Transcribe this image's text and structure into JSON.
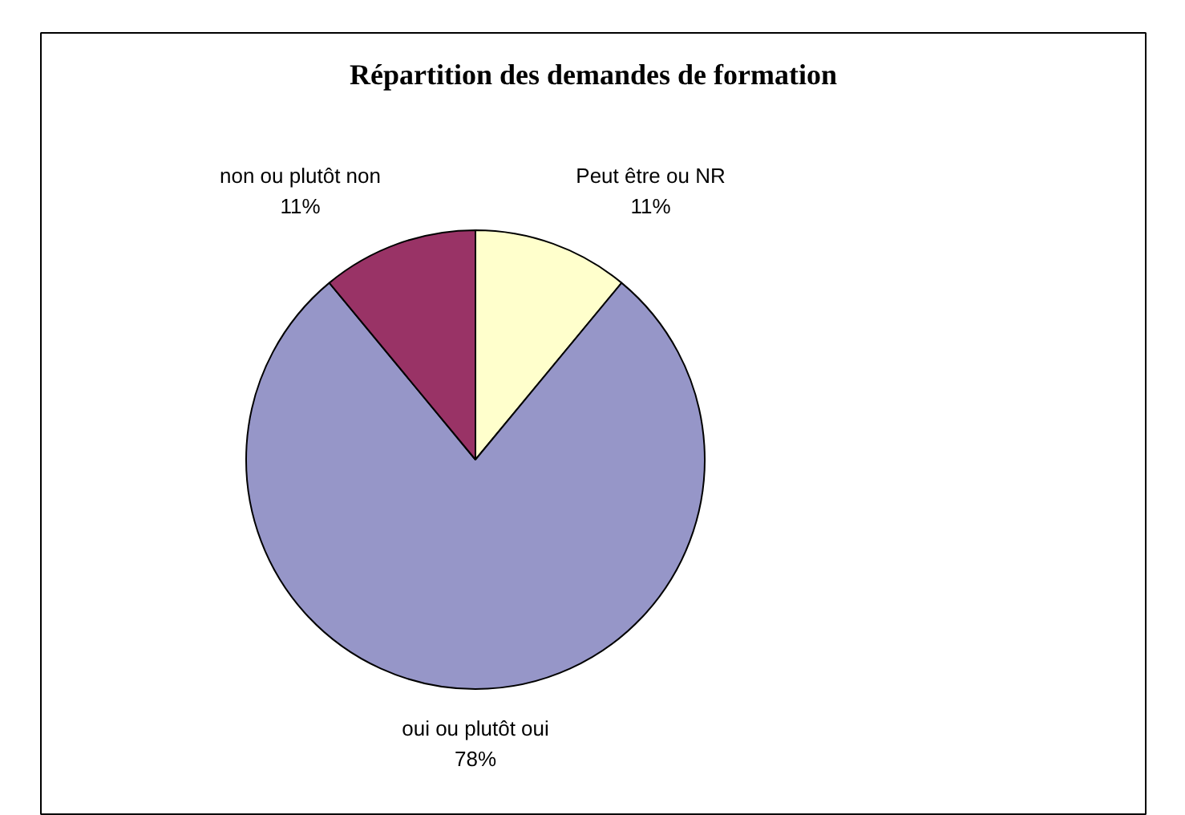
{
  "chart_data": {
    "type": "pie",
    "title": "Répartition des demandes de formation",
    "categories": [
      "Peut être ou NR",
      "oui ou plutôt oui",
      "non ou plutôt non"
    ],
    "values": [
      11,
      78,
      11
    ],
    "colors": [
      "#ffffcc",
      "#9696c8",
      "#993366"
    ],
    "value_labels": [
      "11%",
      "78%",
      "11%"
    ]
  }
}
